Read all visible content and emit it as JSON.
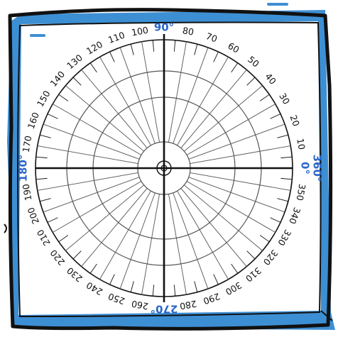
{
  "protractor": {
    "degree_labels": [
      "0",
      "10",
      "20",
      "30",
      "40",
      "50",
      "60",
      "70",
      "80",
      "90",
      "100",
      "110",
      "120",
      "130",
      "140",
      "150",
      "160",
      "170",
      "180",
      "190",
      "200",
      "210",
      "220",
      "230",
      "240",
      "250",
      "260",
      "270",
      "280",
      "290",
      "300",
      "310",
      "320",
      "330",
      "340",
      "350"
    ],
    "major_labels": [
      {
        "deg": 0,
        "text": "0°"
      },
      {
        "deg": 90,
        "text": "90°"
      },
      {
        "deg": 180,
        "text": "180°"
      },
      {
        "deg": 270,
        "text": "270°"
      }
    ],
    "wrap_label": "360°",
    "tick_step_degrees": 5,
    "ray_step_degrees": 10
  },
  "colors": {
    "frame_blue": "#3d8fd4",
    "major_label_blue": "#2a66c9",
    "line": "#111111",
    "grid": "#555555"
  }
}
